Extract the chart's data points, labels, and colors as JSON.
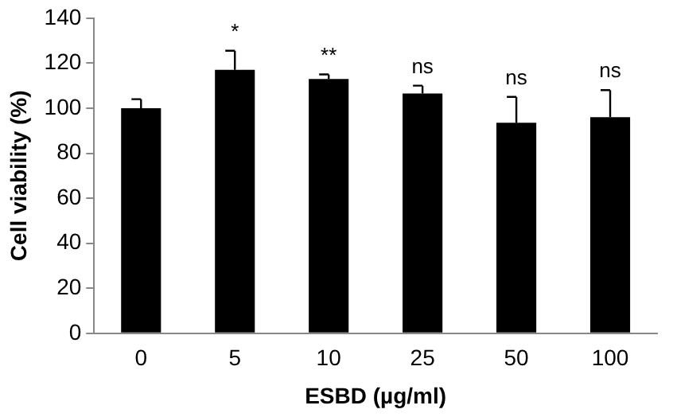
{
  "chart_data": {
    "type": "bar",
    "xlabel": "ESBD (µg/ml)",
    "ylabel": "Cell viability (%)",
    "categories": [
      "0",
      "5",
      "10",
      "25",
      "50",
      "100"
    ],
    "values": [
      100,
      117,
      113,
      106.5,
      93.5,
      96
    ],
    "errors": [
      [
        100,
        104
      ],
      [
        117,
        125.5
      ],
      [
        113,
        115
      ],
      [
        106.5,
        110
      ],
      [
        93.5,
        105
      ],
      [
        96,
        108
      ]
    ],
    "color": "#000000",
    "ylim": [
      0,
      140
    ],
    "yticks": [
      0,
      20,
      40,
      60,
      80,
      100,
      120,
      140
    ],
    "grid": false,
    "legend": false,
    "annotations": [
      {
        "text": "*",
        "x": "5",
        "y": 125.5
      },
      {
        "text": "**",
        "x": "10",
        "y": 115
      },
      {
        "text": "ns",
        "x": "25",
        "y": 110
      },
      {
        "text": "ns",
        "x": "50",
        "y": 105
      },
      {
        "text": "ns",
        "x": "100",
        "y": 108
      }
    ]
  }
}
